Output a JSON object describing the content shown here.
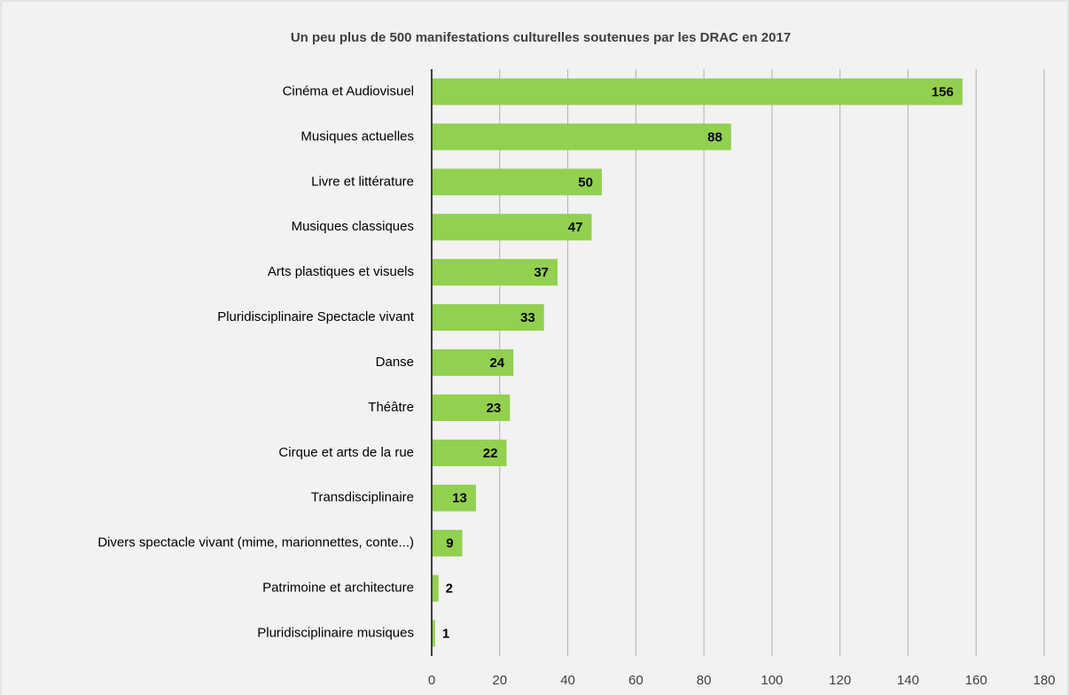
{
  "chart_data": {
    "type": "bar",
    "orientation": "horizontal",
    "title": "Un peu plus de 500 manifestations culturelles soutenues par les DRAC en 2017",
    "categories": [
      "Cinéma et Audiovisuel",
      "Musiques actuelles",
      "Livre et littérature",
      "Musiques classiques",
      "Arts plastiques et visuels",
      "Pluridisciplinaire Spectacle vivant",
      "Danse",
      "Théâtre",
      "Cirque et arts de la rue",
      "Transdisciplinaire",
      "Divers spectacle vivant (mime, marionnettes, conte...)",
      "Patrimoine et architecture",
      "Pluridisciplinaire musiques"
    ],
    "values": [
      156,
      88,
      50,
      47,
      37,
      33,
      24,
      23,
      22,
      13,
      9,
      2,
      1
    ],
    "color": "#92d050",
    "xlim": [
      0,
      180
    ],
    "xticks": [
      0,
      20,
      40,
      60,
      80,
      100,
      120,
      140,
      160,
      180
    ],
    "grid": true
  }
}
